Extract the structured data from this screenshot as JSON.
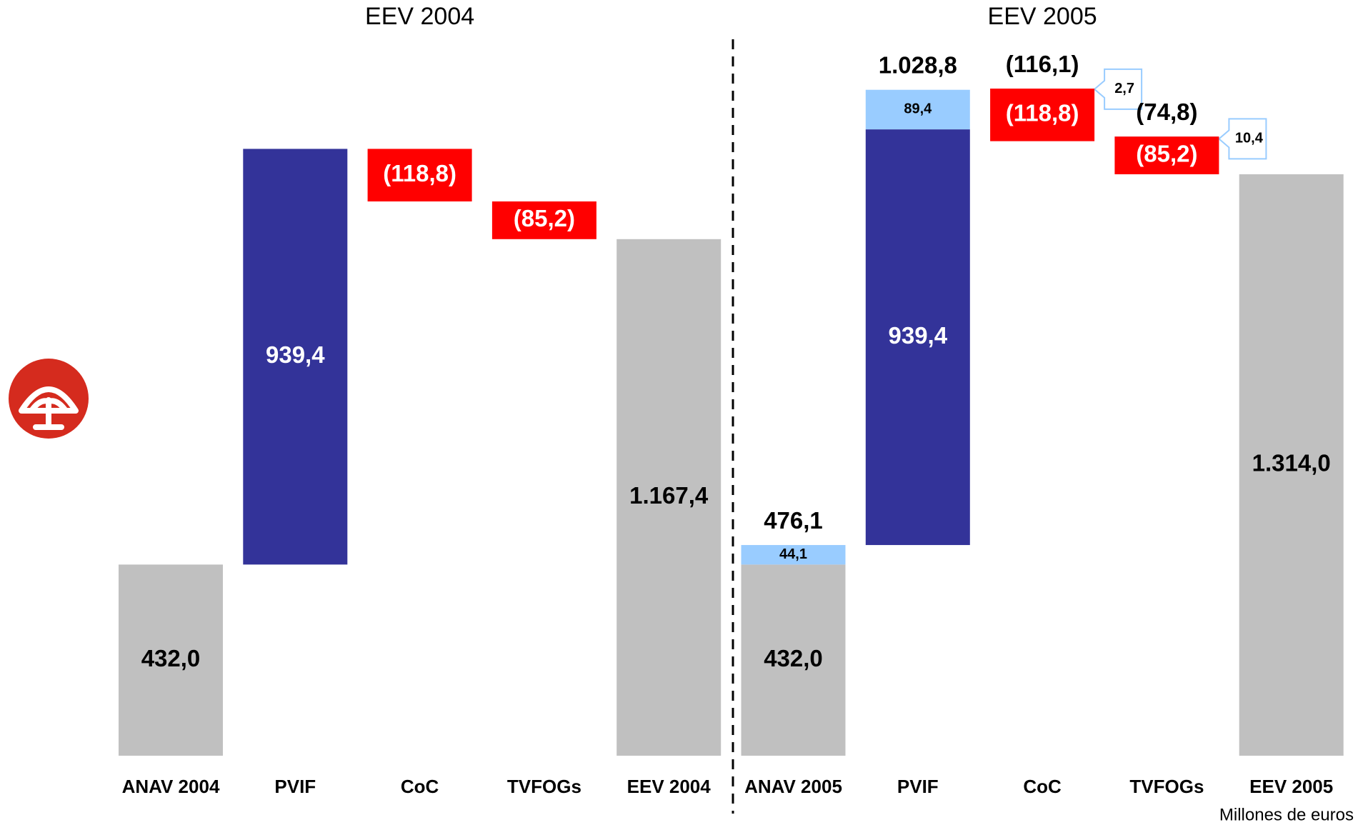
{
  "chart_data": [
    {
      "type": "waterfall",
      "title": "EEV 2004",
      "categories": [
        "ANAV 2004",
        "PVIF",
        "CoC",
        "TVFOGs",
        "EEV 2004"
      ],
      "series": [
        {
          "values": [
            432.0,
            939.4,
            -118.8,
            -85.2,
            1167.4
          ],
          "value_labels": [
            "432,0",
            "939,4",
            "(118,8)",
            "(85,2)",
            "1.167,4"
          ],
          "colors": [
            "#c0c0c0",
            "#333399",
            "#ff0000",
            "#ff0000",
            "#c0c0c0"
          ]
        }
      ]
    },
    {
      "type": "waterfall",
      "title": "EEV 2005",
      "categories": [
        "ANAV 2005",
        "PVIF",
        "CoC",
        "TVFOGs",
        "EEV 2005"
      ],
      "series": [
        {
          "values": [
            432.0,
            939.4,
            -118.8,
            -85.2,
            1314.0
          ],
          "value_labels": [
            "432,0",
            "939,4",
            "(118,8)",
            "(85,2)",
            "1.314,0"
          ],
          "colors": [
            "#c0c0c0",
            "#333399",
            "#ff0000",
            "#ff0000",
            "#c0c0c0"
          ]
        },
        {
          "values": [
            44.1,
            89.4,
            2.7,
            10.4,
            null
          ],
          "value_labels": [
            "44,1",
            "89,4",
            "2,7",
            "10,4",
            null
          ],
          "color": "#99ccff"
        }
      ],
      "totals": [
        476.1,
        1028.8,
        -116.1,
        -74.8,
        null
      ],
      "total_labels": [
        "476,1",
        "1.028,8",
        "(116,1)",
        "(74,8)",
        null
      ]
    }
  ],
  "unit_note": "Millones de euros"
}
